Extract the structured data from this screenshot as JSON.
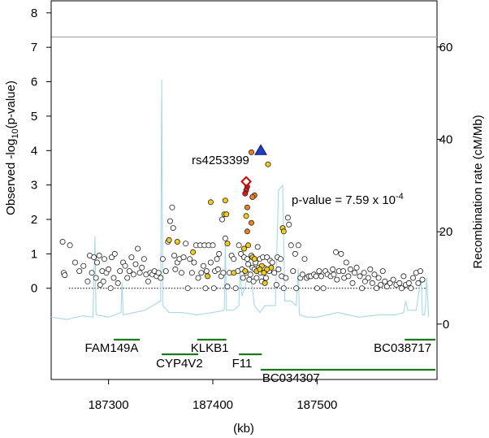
{
  "chart_data": {
    "type": "scatter",
    "xlabel": "(kb)",
    "ylabel_left": "Observed -log10(p-value)",
    "ylabel_right": "Recombination rate (cM/Mb)",
    "xlim": [
      187245,
      187615
    ],
    "ylim_left": [
      -2.65,
      8.35
    ],
    "ylim_right": [
      -12,
      70
    ],
    "x_ticks": [
      187300,
      187400,
      187500
    ],
    "y_ticks_left": [
      0,
      1,
      2,
      3,
      4,
      5,
      6,
      7,
      8
    ],
    "y_ticks_right": [
      0,
      20,
      40,
      60
    ],
    "significance_line": 7.3,
    "reference_line": 0,
    "annotation": {
      "snp": "rs4253399",
      "pvalue_prefix": "p-value = 7.59 x 10",
      "pvalue_exp": "-4"
    },
    "lead_snp": {
      "x": 187446,
      "y": 4.0,
      "color": "#1f3fbf"
    },
    "red_snp": {
      "x": 187432,
      "y": 3.1,
      "color": "#ffffff",
      "stroke": "#cc0000"
    },
    "colors": {
      "axis": "#000000",
      "recomb": "#a8d8e8",
      "gene": "#1a7a1a",
      "sigline": "#aaaaaa",
      "lead": "#1f3fbf",
      "red": "#d91a1a",
      "orange": "#f08020",
      "yellow": "#f2cc1c",
      "white": "#ffffff"
    },
    "series": [
      {
        "kind": "red",
        "points": [
          [
            187433,
            2.95
          ],
          [
            187432,
            2.85
          ],
          [
            187431,
            2.75
          ]
        ]
      },
      {
        "kind": "orange",
        "points": [
          [
            187437,
            3.95
          ],
          [
            187440,
            2.7
          ],
          [
            187438,
            2.65
          ],
          [
            187433,
            2.35
          ],
          [
            187433,
            1.65
          ],
          [
            187437,
            1.9
          ]
        ]
      },
      {
        "kind": "yellow",
        "points": [
          [
            187453,
            3.6
          ],
          [
            187412,
            2.55
          ],
          [
            187411,
            2.15
          ],
          [
            187413,
            2.15
          ],
          [
            187398,
            2.5
          ],
          [
            187432,
            2.1
          ],
          [
            187467,
            1.75
          ],
          [
            187468,
            1.65
          ],
          [
            187358,
            1.4
          ],
          [
            187381,
            1.05
          ],
          [
            187366,
            1.35
          ],
          [
            187438,
            0.9
          ],
          [
            187431,
            0.5
          ],
          [
            187434,
            1.25
          ],
          [
            187447,
            0.65
          ],
          [
            187456,
            0.6
          ],
          [
            187452,
            0.55
          ],
          [
            187449,
            0.45
          ],
          [
            187442,
            0.5
          ],
          [
            187445,
            0.55
          ],
          [
            187450,
            0.15
          ],
          [
            187395,
            0.35
          ],
          [
            187420,
            0.45
          ],
          [
            187414,
            1.3
          ],
          [
            187430,
            1.15
          ],
          [
            187440,
            0.85
          ]
        ]
      },
      {
        "kind": "white",
        "points": [
          [
            187256,
            1.35
          ],
          [
            187257,
            0.45
          ],
          [
            187258,
            0.38
          ],
          [
            187263,
            1.25
          ],
          [
            187268,
            0.75
          ],
          [
            187272,
            0.5
          ],
          [
            187276,
            0.65
          ],
          [
            187280,
            0.2
          ],
          [
            187282,
            0.95
          ],
          [
            187284,
            0.45
          ],
          [
            187286,
            0.9
          ],
          [
            187288,
            0.3
          ],
          [
            187289,
            0.75
          ],
          [
            187291,
            0.95
          ],
          [
            187292,
            0.1
          ],
          [
            187294,
            0.5
          ],
          [
            187295,
            0.2
          ],
          [
            187296,
            0.85
          ],
          [
            187298,
            0.45
          ],
          [
            187300,
            0.55
          ],
          [
            187302,
            0.0
          ],
          [
            187303,
            0.9
          ],
          [
            187305,
            0.3
          ],
          [
            187306,
            1.0
          ],
          [
            187309,
            0.15
          ],
          [
            187311,
            0.5
          ],
          [
            187314,
            0.75
          ],
          [
            187316,
            0.65
          ],
          [
            187318,
            0.3
          ],
          [
            187320,
            0.5
          ],
          [
            187322,
            0.9
          ],
          [
            187324,
            0.4
          ],
          [
            187326,
            0.7
          ],
          [
            187328,
            1.15
          ],
          [
            187330,
            0.45
          ],
          [
            187332,
            0.6
          ],
          [
            187334,
            0.85
          ],
          [
            187336,
            0.4
          ],
          [
            187338,
            0.2
          ],
          [
            187340,
            0.45
          ],
          [
            187342,
            0.4
          ],
          [
            187344,
            0.5
          ],
          [
            187346,
            0.35
          ],
          [
            187348,
            0.45
          ],
          [
            187350,
            0.3
          ],
          [
            187352,
            0.85
          ],
          [
            187355,
            0.5
          ],
          [
            187357,
            1.35
          ],
          [
            187359,
            1.95
          ],
          [
            187361,
            2.35
          ],
          [
            187362,
            1.75
          ],
          [
            187363,
            0.95
          ],
          [
            187364,
            0.55
          ],
          [
            187366,
            0.75
          ],
          [
            187368,
            0.85
          ],
          [
            187370,
            0.45
          ],
          [
            187372,
            0.9
          ],
          [
            187374,
            1.3
          ],
          [
            187376,
            0.0
          ],
          [
            187378,
            0.85
          ],
          [
            187380,
            0.45
          ],
          [
            187382,
            0.75
          ],
          [
            187384,
            1.25
          ],
          [
            187386,
            0.3
          ],
          [
            187388,
            1.25
          ],
          [
            187389,
            0.45
          ],
          [
            187391,
            0.65
          ],
          [
            187392,
            1.25
          ],
          [
            187393,
            0.0
          ],
          [
            187394,
            0.5
          ],
          [
            187396,
            1.25
          ],
          [
            187398,
            0.75
          ],
          [
            187400,
            1.25
          ],
          [
            187401,
            0.0
          ],
          [
            187402,
            0.5
          ],
          [
            187404,
            0.85
          ],
          [
            187405,
            0.55
          ],
          [
            187406,
            1.0
          ],
          [
            187408,
            0.35
          ],
          [
            187409,
            2.0
          ],
          [
            187410,
            0.45
          ],
          [
            187412,
            1.45
          ],
          [
            187414,
            0.05
          ],
          [
            187416,
            0.45
          ],
          [
            187418,
            0.95
          ],
          [
            187420,
            0.85
          ],
          [
            187422,
            0.0
          ],
          [
            187424,
            0.5
          ],
          [
            187425,
            1.25
          ],
          [
            187427,
            1.0
          ],
          [
            187428,
            0.55
          ],
          [
            187429,
            0.3
          ],
          [
            187430,
            0.9
          ],
          [
            187432,
            0.45
          ],
          [
            187433,
            0.85
          ],
          [
            187434,
            0.7
          ],
          [
            187435,
            0.25
          ],
          [
            187436,
            0.4
          ],
          [
            187437,
            0.95
          ],
          [
            187438,
            0.6
          ],
          [
            187439,
            0.2
          ],
          [
            187440,
            0.55
          ],
          [
            187441,
            0.75
          ],
          [
            187442,
            0.3
          ],
          [
            187443,
            1.2
          ],
          [
            187444,
            0.6
          ],
          [
            187445,
            0.85
          ],
          [
            187446,
            0.45
          ],
          [
            187447,
            0.2
          ],
          [
            187448,
            0.9
          ],
          [
            187449,
            0.6
          ],
          [
            187451,
            0.3
          ],
          [
            187452,
            0.9
          ],
          [
            187454,
            0.5
          ],
          [
            187455,
            0.8
          ],
          [
            187457,
            0.75
          ],
          [
            187459,
            0.45
          ],
          [
            187461,
            0.1
          ],
          [
            187462,
            0.9
          ],
          [
            187463,
            0.55
          ],
          [
            187465,
            0.85
          ],
          [
            187466,
            0.35
          ],
          [
            187468,
            0.0
          ],
          [
            187470,
            0.3
          ],
          [
            187472,
            2.05
          ],
          [
            187473,
            1.85
          ],
          [
            187475,
            1.25
          ],
          [
            187477,
            0.5
          ],
          [
            187479,
            1.0
          ],
          [
            187480,
            0.0
          ],
          [
            187482,
            1.25
          ],
          [
            187484,
            0.3
          ],
          [
            187486,
            0.4
          ],
          [
            187488,
            0.85
          ],
          [
            187490,
            0.3
          ],
          [
            187492,
            0.35
          ],
          [
            187494,
            0.35
          ],
          [
            187497,
            0.4
          ],
          [
            187499,
            0.35
          ],
          [
            187500,
            0.0
          ],
          [
            187502,
            0.5
          ],
          [
            187504,
            0.35
          ],
          [
            187506,
            0.0
          ],
          [
            187508,
            0.5
          ],
          [
            187510,
            0.4
          ],
          [
            187513,
            0.35
          ],
          [
            187515,
            0.55
          ],
          [
            187516,
            0.4
          ],
          [
            187518,
            1.05
          ],
          [
            187519,
            0.25
          ],
          [
            187521,
            0.5
          ],
          [
            187523,
            1.0
          ],
          [
            187525,
            0.5
          ],
          [
            187526,
            0.3
          ],
          [
            187528,
            0.75
          ],
          [
            187530,
            0.35
          ],
          [
            187532,
            0.55
          ],
          [
            187534,
            0.15
          ],
          [
            187536,
            0.45
          ],
          [
            187538,
            0.6
          ],
          [
            187541,
            0.35
          ],
          [
            187543,
            0.0
          ],
          [
            187545,
            0.45
          ],
          [
            187546,
            0.2
          ],
          [
            187549,
            0.3
          ],
          [
            187551,
            0.55
          ],
          [
            187553,
            0.15
          ],
          [
            187555,
            0.4
          ],
          [
            187557,
            0.0
          ],
          [
            187559,
            0.3
          ],
          [
            187561,
            0.1
          ],
          [
            187563,
            0.5
          ],
          [
            187565,
            0.2
          ],
          [
            187567,
            0.05
          ],
          [
            187570,
            0.15
          ],
          [
            187573,
            0.25
          ],
          [
            187576,
            0.1
          ],
          [
            187579,
            0.15
          ],
          [
            187581,
            0.0
          ],
          [
            187583,
            0.35
          ],
          [
            187585,
            0.1
          ],
          [
            187588,
            0.15
          ],
          [
            187590,
            0.0
          ],
          [
            187592,
            0.3
          ],
          [
            187595,
            0.45
          ],
          [
            187597,
            0.15
          ],
          [
            187599,
            0.5
          ],
          [
            187601,
            0.25
          ]
        ]
      }
    ],
    "recombination": [
      [
        187245,
        1.5
      ],
      [
        187260,
        1.0
      ],
      [
        187275,
        1.8
      ],
      [
        187285,
        1.5
      ],
      [
        187287,
        19
      ],
      [
        187288,
        2
      ],
      [
        187300,
        1.5
      ],
      [
        187312,
        2.5
      ],
      [
        187313,
        9
      ],
      [
        187314,
        2
      ],
      [
        187335,
        3
      ],
      [
        187350,
        5
      ],
      [
        187351,
        53
      ],
      [
        187352,
        4
      ],
      [
        187358,
        2.5
      ],
      [
        187370,
        2.5
      ],
      [
        187385,
        2
      ],
      [
        187400,
        2.5
      ],
      [
        187411,
        3
      ],
      [
        187412,
        18
      ],
      [
        187413,
        3
      ],
      [
        187420,
        3
      ],
      [
        187425,
        4
      ],
      [
        187426,
        12
      ],
      [
        187428,
        6
      ],
      [
        187432,
        9
      ],
      [
        187436,
        11
      ],
      [
        187440,
        4
      ],
      [
        187445,
        2.5
      ],
      [
        187450,
        4
      ],
      [
        187460,
        4
      ],
      [
        187463,
        29
      ],
      [
        187467,
        30
      ],
      [
        187469,
        5
      ],
      [
        187475,
        5
      ],
      [
        187480,
        4
      ],
      [
        187482,
        12
      ],
      [
        187483,
        2
      ],
      [
        187490,
        1.5
      ],
      [
        187500,
        1.5
      ],
      [
        187520,
        2.5
      ],
      [
        187540,
        1.5
      ],
      [
        187560,
        2
      ],
      [
        187575,
        2
      ],
      [
        187583,
        2.5
      ],
      [
        187585,
        5
      ],
      [
        187587,
        3
      ],
      [
        187595,
        3
      ],
      [
        187597,
        6
      ],
      [
        187600,
        10
      ],
      [
        187601,
        2
      ],
      [
        187603,
        2
      ],
      [
        187604,
        4
      ],
      [
        187605,
        10
      ],
      [
        187607,
        1.5
      ]
    ],
    "genes": [
      {
        "name": "FAM149A",
        "x1": 187305,
        "x2": 187330,
        "lane": 0,
        "label_x": 187303,
        "label_lane": 0
      },
      {
        "name": "KLKB1",
        "x1": 187385,
        "x2": 187413,
        "lane": 0,
        "label_x": 187397,
        "label_lane": 0
      },
      {
        "name": "CYP4V2",
        "x1": 187351,
        "x2": 187386,
        "lane": 1,
        "label_x": 187368,
        "label_lane": 1
      },
      {
        "name": "F11",
        "x1": 187425,
        "x2": 187447,
        "lane": 1,
        "label_x": 187428,
        "label_lane": 1
      },
      {
        "name": "BC038717",
        "x1": 187584,
        "x2": 187618,
        "lane": 0,
        "label_x": 187582,
        "label_lane": 0
      },
      {
        "name": "BC034307",
        "x1": 187446,
        "x2": 187618,
        "lane": 2,
        "label_x": 187475,
        "label_lane": 2
      }
    ]
  }
}
